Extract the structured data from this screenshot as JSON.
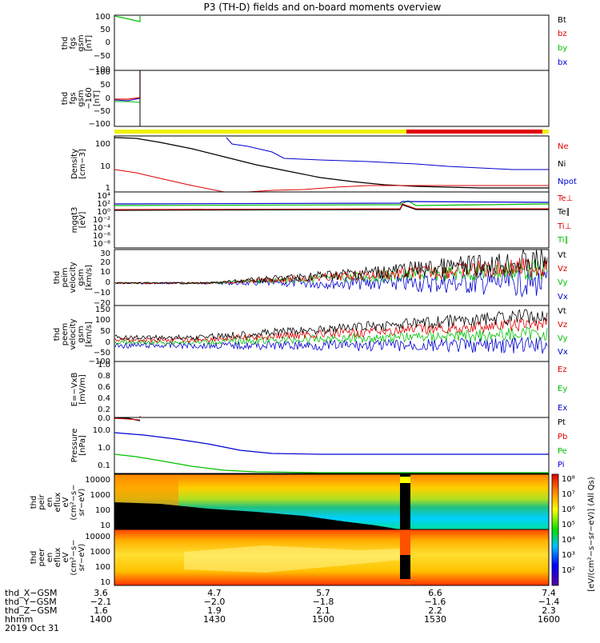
{
  "title": "P3 (TH-D) fields and on-board moments overview",
  "colors": {
    "black": "#000000",
    "red": "#e00000",
    "green": "#00c000",
    "blue": "#0000d0",
    "yellow": "#f0f000"
  },
  "panels": [
    {
      "id": "fgs_gsm",
      "ylabel": [
        "thd",
        "fgs",
        "gsm",
        "[nT]"
      ],
      "yticks": [
        "100",
        "50",
        "0",
        "−50",
        "−100"
      ],
      "ylim": [
        -100,
        100
      ],
      "legend": [
        "Bt",
        "bz",
        "by",
        "bx"
      ],
      "legend_colors": [
        "black",
        "red",
        "green",
        "blue"
      ]
    },
    {
      "id": "fgs_gsm_clipped",
      "ylabel": [
        "thd",
        "fgs",
        "gsm",
        "−160",
        "[nT]"
      ],
      "yticks": [
        "100",
        "50",
        "0",
        "−50",
        "−100"
      ],
      "ylim": [
        -120,
        100
      ],
      "legend": [],
      "legend_colors": []
    },
    {
      "id": "density",
      "ylabel": [
        "Density",
        "[cm−3]"
      ],
      "yticks": [
        "100",
        "10",
        "1"
      ],
      "legend": [
        "Ne",
        "Ni",
        "Npot"
      ],
      "legend_colors": [
        "red",
        "black",
        "blue"
      ]
    },
    {
      "id": "temperature",
      "ylabel": [
        "mgqt3",
        "[eV]"
      ],
      "yticks": [
        "10⁴",
        "10²",
        "10⁰",
        "10⁻²",
        "10⁻⁴",
        "10⁻⁶",
        "10⁻⁸"
      ],
      "legend": [
        "Te⊥",
        "Te∥",
        "Ti⊥",
        "Ti∥"
      ],
      "legend_colors": [
        "red",
        "black",
        "red",
        "green"
      ]
    },
    {
      "id": "peim_velocity",
      "ylabel": [
        "thd",
        "peim",
        "velocity",
        "gsm",
        "[km/s]"
      ],
      "yticks": [
        "30",
        "20",
        "10",
        "0",
        "−10",
        "−20"
      ],
      "ylim": [
        -20,
        30
      ],
      "legend": [
        "Vt",
        "Vz",
        "Vy",
        "Vx"
      ],
      "legend_colors": [
        "black",
        "red",
        "green",
        "blue"
      ]
    },
    {
      "id": "peem_velocity",
      "ylabel": [
        "thd",
        "peem",
        "velocity",
        "gsm",
        "[km/s]"
      ],
      "yticks": [
        "150",
        "100",
        "50",
        "0",
        "−50",
        "−100"
      ],
      "ylim": [
        -100,
        150
      ],
      "legend": [
        "Vt",
        "Vz",
        "Vy",
        "Vx"
      ],
      "legend_colors": [
        "black",
        "red",
        "green",
        "blue"
      ]
    },
    {
      "id": "efield",
      "ylabel": [
        "E=−VxB",
        "[mV/m]"
      ],
      "yticks": [
        "1.0",
        "0.8",
        "0.6",
        "0.4",
        "0.2",
        "0.0"
      ],
      "ylim": [
        0,
        1
      ],
      "legend": [
        "Ez",
        "Ey",
        "Ex"
      ],
      "legend_colors": [
        "red",
        "green",
        "blue"
      ]
    },
    {
      "id": "pressure",
      "ylabel": [
        "Pressure",
        "[nPa]"
      ],
      "yticks": [
        "10.0",
        "1.0",
        "0.1"
      ],
      "legend": [
        "Pt",
        "Pb",
        "Pe",
        "Pi"
      ],
      "legend_colors": [
        "black",
        "red",
        "green",
        "blue"
      ]
    },
    {
      "id": "peir_eflux",
      "ylabel": [
        "thd",
        "peir",
        "en",
        "eflux",
        "eV",
        "(cm²−s−",
        "sr−eV)"
      ],
      "yticks": [
        "10000",
        "1000",
        "100",
        "10"
      ],
      "legend": [],
      "legend_colors": []
    },
    {
      "id": "peer_eflux",
      "ylabel": [
        "thd",
        "peer",
        "en",
        "eflux",
        "eV",
        "(cm²−s−",
        "sr−eV)"
      ],
      "yticks": [
        "10000",
        "1000",
        "100",
        "10"
      ],
      "legend": [],
      "legend_colors": []
    }
  ],
  "colorbar": {
    "ticks": [
      "10⁸",
      "10⁷",
      "10⁶",
      "10⁵",
      "10⁴",
      "10³",
      "10²"
    ],
    "label": "[eV/(cm²−s−sr−eV)] (All Qs)"
  },
  "footer": {
    "rows": [
      {
        "label": "thd_X−GSM",
        "values": [
          "3.6",
          "4.7",
          "5.7",
          "6.6",
          "7.4"
        ]
      },
      {
        "label": "thd_Y−GSM",
        "values": [
          "−2.1",
          "−2.0",
          "−1.8",
          "−1.6",
          "−1.4"
        ]
      },
      {
        "label": "thd_Z−GSM",
        "values": [
          "1.6",
          "1.9",
          "2.1",
          "2.2",
          "2.3"
        ]
      },
      {
        "label": "hhmm",
        "values": [
          "1400",
          "1430",
          "1500",
          "1530",
          "1600"
        ]
      }
    ],
    "date": "2019 Oct 31"
  },
  "chart_data": {
    "type": "line",
    "title": "P3 (TH-D) fields and on-board moments overview",
    "x": [
      "1400",
      "1430",
      "1500",
      "1530",
      "1600"
    ],
    "series": [
      {
        "name": "by",
        "values": [
          100,
          95,
          null,
          null,
          null
        ]
      },
      {
        "name": "Ni",
        "values": [
          180,
          45,
          5,
          1.2,
          1.0
        ]
      },
      {
        "name": "Npot",
        "values": [
          null,
          200,
          25,
          12,
          7
        ]
      },
      {
        "name": "Ne",
        "values": [
          5,
          2,
          0.8,
          1.1,
          1.1
        ]
      },
      {
        "name": "Pe",
        "values": [
          0.3,
          0.15,
          0.06,
          0.06,
          0.06
        ]
      },
      {
        "name": "Pi",
        "values": [
          7,
          2.5,
          0.9,
          0.6,
          0.55
        ]
      }
    ]
  }
}
